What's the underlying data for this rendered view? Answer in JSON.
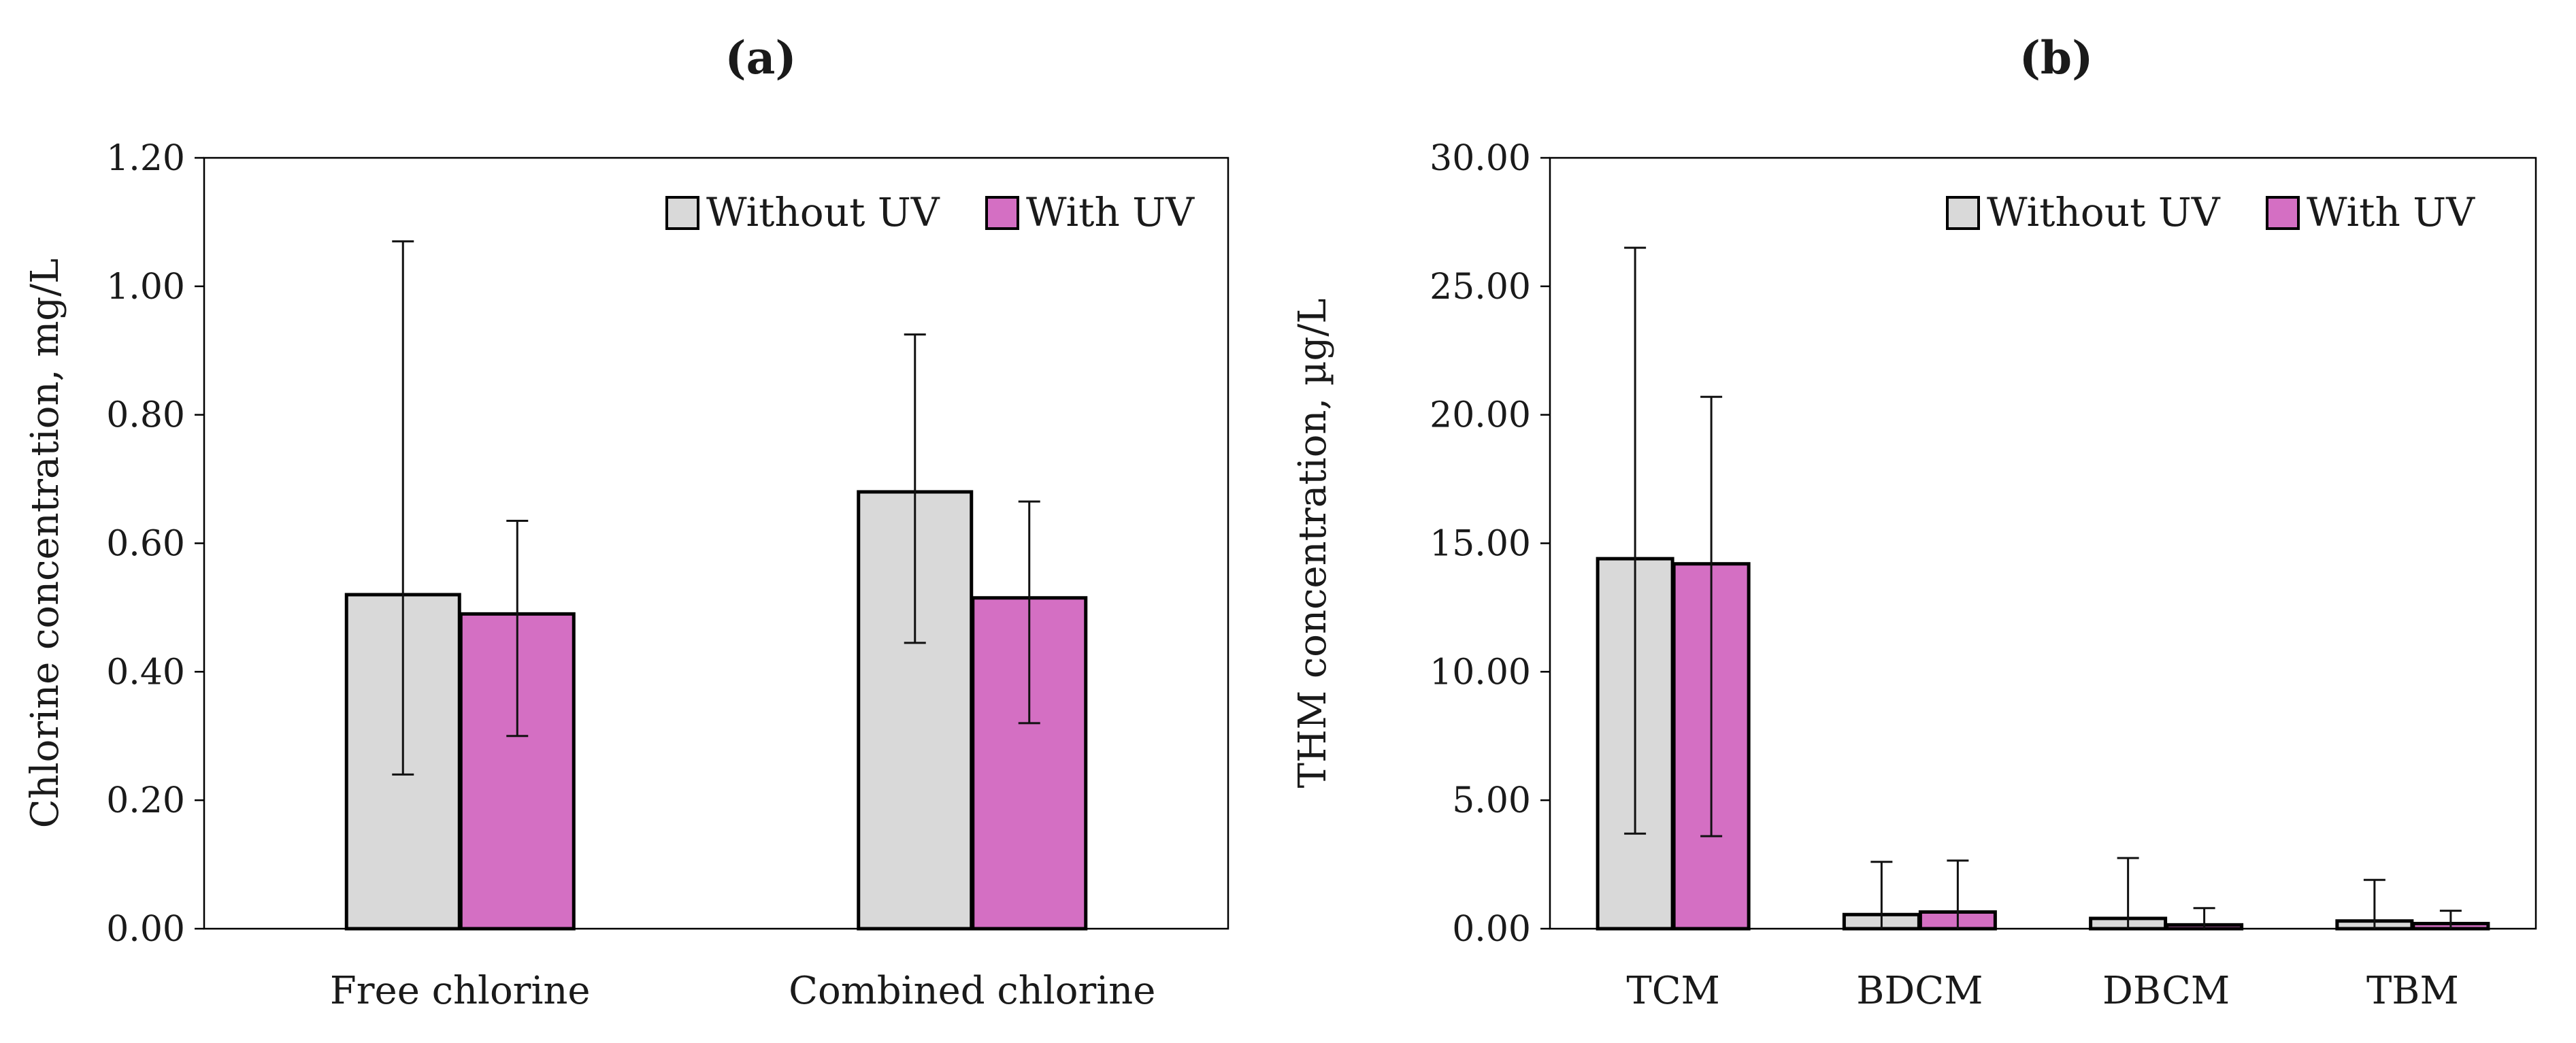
{
  "chart_data": [
    {
      "type": "bar",
      "title": "(a)",
      "xlabel": "",
      "ylabel": "Chlorine concentration, mg/L",
      "ylim": [
        0,
        1.2
      ],
      "ytick_step": 0.2,
      "ytick_decimals": 2,
      "categories": [
        "Free chlorine",
        "Combined chlorine"
      ],
      "series": [
        {
          "name": "Without UV",
          "color": "#d9d9d9",
          "values": [
            0.52,
            0.68
          ],
          "error_low": [
            0.24,
            0.445
          ],
          "error_high": [
            1.07,
            0.925
          ]
        },
        {
          "name": "With UV",
          "color": "#d46fc3",
          "values": [
            0.49,
            0.515
          ],
          "error_low": [
            0.3,
            0.32
          ],
          "error_high": [
            0.635,
            0.665
          ]
        }
      ],
      "legend": {
        "position": "top-right"
      },
      "grid": false
    },
    {
      "type": "bar",
      "title": "(b)",
      "xlabel": "",
      "ylabel": "THM concentration, µg/L",
      "ylim": [
        0,
        30
      ],
      "ytick_step": 5,
      "ytick_decimals": 2,
      "categories": [
        "TCM",
        "BDCM",
        "DBCM",
        "TBM"
      ],
      "series": [
        {
          "name": "Without UV",
          "color": "#d9d9d9",
          "values": [
            14.4,
            0.55,
            0.4,
            0.3
          ],
          "error_low": [
            3.7,
            0,
            0,
            0
          ],
          "error_high": [
            26.5,
            2.6,
            2.75,
            1.9
          ]
        },
        {
          "name": "With UV",
          "color": "#d46fc3",
          "values": [
            14.2,
            0.65,
            0.15,
            0.2
          ],
          "error_low": [
            3.6,
            0,
            0,
            0
          ],
          "error_high": [
            20.7,
            2.65,
            0.8,
            0.7
          ]
        }
      ],
      "legend": {
        "position": "top-right"
      },
      "grid": false
    }
  ]
}
